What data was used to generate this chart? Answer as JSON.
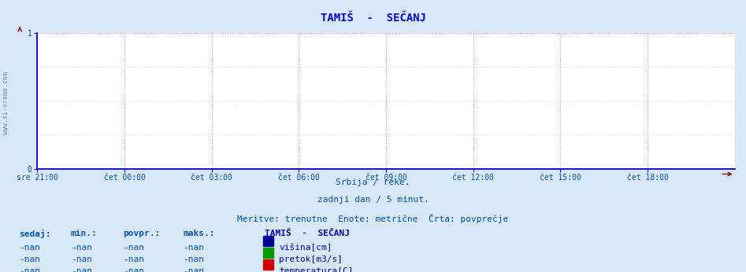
{
  "title": "TAMIŠ  -  SEČANJ",
  "title_color": "#0000cc",
  "title_fontsize": 10,
  "bg_color": "#d8e8f8",
  "plot_bg_color": "#ffffff",
  "watermark": "www.si-vreme.com",
  "watermark_color": "#6699cc",
  "xlim": [
    0,
    288
  ],
  "ylim": [
    0,
    1
  ],
  "yticks": [
    0,
    1
  ],
  "xtick_labels": [
    "sre 21:00",
    "čet 00:00",
    "čet 03:00",
    "čet 06:00",
    "čet 09:00",
    "čet 12:00",
    "čet 15:00",
    "čet 18:00"
  ],
  "xtick_positions": [
    0,
    36,
    72,
    108,
    144,
    180,
    216,
    252
  ],
  "vgrid_color": "#ff8888",
  "hgrid_color": "#ddcccc",
  "grid_linestyle": ":",
  "spine_color": "#0000cc",
  "arrow_color": "#880000",
  "subtitle1": "Srbija / reke.",
  "subtitle2": "zadnji dan / 5 minut.",
  "subtitle3": "Meritve: trenutne  Enote: metrične  Črta: povprečje",
  "subtitle_color": "#0055aa",
  "subtitle_fontsize": 8,
  "table_headers": [
    "sedaj:",
    "min.:",
    "povpr.:",
    "maks.:"
  ],
  "table_values": [
    "-nan",
    "-nan",
    "-nan",
    "-nan"
  ],
  "table_color": "#0055aa",
  "legend_title": "TAMIŠ  -  SEČANJ",
  "legend_title_color": "#000099",
  "legend_items": [
    "višina[cm]",
    "pretok[m3/s]",
    "temperatura[C]"
  ],
  "legend_colors": [
    "#000099",
    "#009900",
    "#cc0000"
  ],
  "tick_fontsize": 7,
  "tick_color": "#0055aa",
  "table_fontsize": 8
}
